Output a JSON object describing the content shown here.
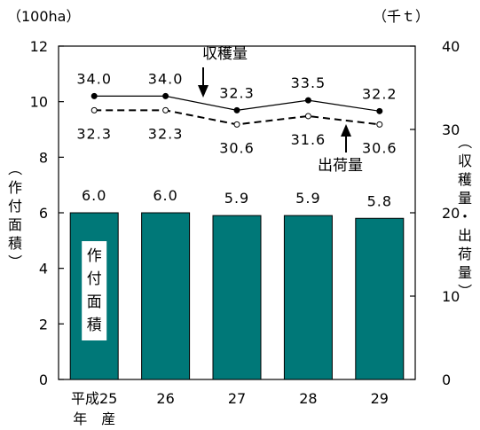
{
  "chart_data": {
    "type": "bar",
    "categories": [
      "平成25\n年　産",
      "26",
      "27",
      "28",
      "29"
    ],
    "category_lines": [
      [
        "平成25",
        "年　産"
      ],
      [
        "26"
      ],
      [
        "27"
      ],
      [
        "28"
      ],
      [
        "29"
      ]
    ],
    "left_axis": {
      "unit": "（100ha）",
      "label": "（作付面積）",
      "ylim": [
        0,
        12
      ],
      "ticks": [
        "0",
        "2",
        "4",
        "6",
        "8",
        "10",
        "12"
      ]
    },
    "right_axis": {
      "unit": "（千ｔ）",
      "label": "（収穫量・出荷量）",
      "ylim": [
        0,
        40
      ],
      "ticks": [
        "0",
        "10",
        "20",
        "30",
        "40"
      ]
    },
    "series": [
      {
        "name": "作付面積",
        "type": "bar",
        "axis": "left",
        "values": [
          6.0,
          6.0,
          5.9,
          5.9,
          5.8
        ],
        "labels": [
          "6.0",
          "6.0",
          "5.9",
          "5.9",
          "5.8"
        ],
        "color": "#007878"
      },
      {
        "name": "収穫量",
        "type": "line",
        "axis": "right",
        "style": "solid",
        "marker": "filled-circle",
        "values": [
          34.0,
          34.0,
          32.3,
          33.5,
          32.2
        ],
        "labels": [
          "34.0",
          "34.0",
          "32.3",
          "33.5",
          "32.2"
        ]
      },
      {
        "name": "出荷量",
        "type": "line",
        "axis": "right",
        "style": "dashed",
        "marker": "open-circle",
        "values": [
          32.3,
          32.3,
          30.6,
          31.6,
          30.6
        ],
        "labels": [
          "32.3",
          "32.3",
          "30.6",
          "31.6",
          "30.6"
        ]
      }
    ],
    "bar_text": [
      "作",
      "付",
      "面",
      "積"
    ],
    "harvest_text": "収穫量",
    "shipment_text": "出荷量",
    "left_label_chars": [
      "（",
      "作",
      "付",
      "面",
      "積",
      "）"
    ],
    "right_label_chars": [
      "（",
      "収",
      "穫",
      "量",
      "・",
      "出",
      "荷",
      "量",
      "）"
    ],
    "grid": false
  }
}
